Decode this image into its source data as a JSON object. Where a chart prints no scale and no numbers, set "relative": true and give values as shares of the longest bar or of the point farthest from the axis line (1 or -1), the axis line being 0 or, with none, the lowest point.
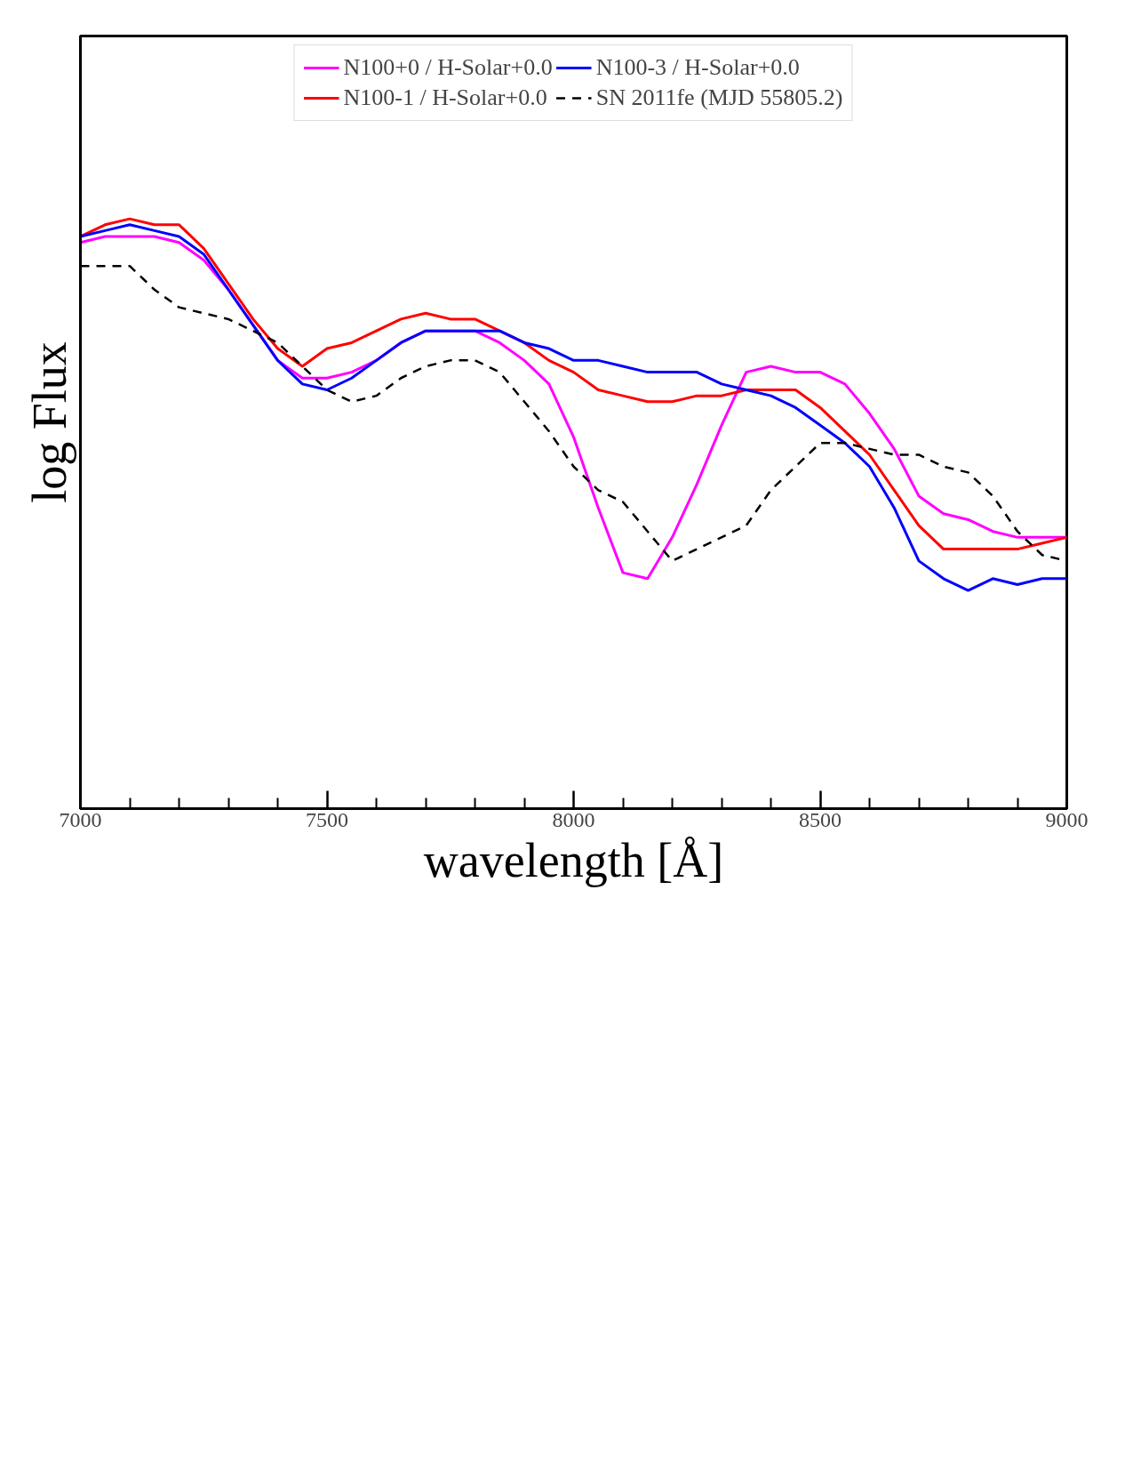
{
  "chart_data": {
    "type": "line",
    "relative": true,
    "xlabel": "wavelength [Å]",
    "ylabel": "log Flux",
    "x": [
      7000,
      7050,
      7100,
      7150,
      7200,
      7250,
      7300,
      7350,
      7400,
      7450,
      7500,
      7550,
      7600,
      7650,
      7700,
      7750,
      7800,
      7850,
      7900,
      7950,
      8000,
      8050,
      8100,
      8150,
      8200,
      8250,
      8300,
      8350,
      8400,
      8450,
      8500,
      8550,
      8600,
      8650,
      8700,
      8750,
      8800,
      8850,
      8900,
      8950,
      9000
    ],
    "xlim": [
      7000,
      9000
    ],
    "xticks": [
      7000,
      {
        "value": 7100,
        "label": null
      },
      {
        "value": 7200,
        "label": null
      },
      {
        "value": 7300,
        "label": null
      },
      {
        "value": 7400,
        "label": null
      },
      7500,
      {
        "value": 7600,
        "label": null
      },
      {
        "value": 7700,
        "label": null
      },
      {
        "value": 7800,
        "label": null
      },
      {
        "value": 7900,
        "label": null
      },
      8000,
      {
        "value": 8100,
        "label": null
      },
      {
        "value": 8200,
        "label": null
      },
      {
        "value": 8300,
        "label": null
      },
      {
        "value": 8400,
        "label": null
      },
      8500,
      {
        "value": 8600,
        "label": null
      },
      {
        "value": 8700,
        "label": null
      },
      {
        "value": 8800,
        "label": null
      },
      {
        "value": 8900,
        "label": null
      },
      9000
    ],
    "tick_labels": "x",
    "grid": false,
    "legend": "top",
    "marker": "none",
    "line_style": "solid",
    "series": [
      {
        "name": "N100+0 / H-Solar+0.0",
        "color": "#ff00ff",
        "values": [
          0.96,
          0.97,
          0.97,
          0.97,
          0.96,
          0.93,
          0.88,
          0.82,
          0.76,
          0.73,
          0.73,
          0.74,
          0.76,
          0.79,
          0.81,
          0.81,
          0.81,
          0.79,
          0.76,
          0.72,
          0.63,
          0.51,
          0.4,
          0.39,
          0.46,
          0.55,
          0.65,
          0.74,
          0.75,
          0.74,
          0.74,
          0.72,
          0.67,
          0.61,
          0.53,
          0.5,
          0.49,
          0.47,
          0.46,
          0.46,
          0.46
        ]
      },
      {
        "name": "N100-1 / H-Solar+0.0",
        "color": "#ff0000",
        "values": [
          0.97,
          0.99,
          1.0,
          0.99,
          0.99,
          0.95,
          0.89,
          0.83,
          0.78,
          0.75,
          0.78,
          0.79,
          0.81,
          0.83,
          0.84,
          0.83,
          0.83,
          0.81,
          0.79,
          0.76,
          0.74,
          0.71,
          0.7,
          0.69,
          0.69,
          0.7,
          0.7,
          0.71,
          0.71,
          0.71,
          0.68,
          0.64,
          0.6,
          0.54,
          0.48,
          0.44,
          0.44,
          0.44,
          0.44,
          0.45,
          0.46
        ]
      },
      {
        "name": "N100-3 / H-Solar+0.0",
        "color": "#0000ff",
        "values": [
          0.97,
          0.98,
          0.99,
          0.98,
          0.97,
          0.94,
          0.88,
          0.82,
          0.76,
          0.72,
          0.71,
          0.73,
          0.76,
          0.79,
          0.81,
          0.81,
          0.81,
          0.81,
          0.79,
          0.78,
          0.76,
          0.76,
          0.75,
          0.74,
          0.74,
          0.74,
          0.72,
          0.71,
          0.7,
          0.68,
          0.65,
          0.62,
          0.58,
          0.51,
          0.42,
          0.39,
          0.37,
          0.39,
          0.38,
          0.39,
          0.39
        ]
      },
      {
        "name": "SN 2011fe (MJD 55805.2)",
        "color": "#000000",
        "line_style": "dashed",
        "values": [
          0.92,
          0.92,
          0.92,
          0.88,
          0.85,
          0.84,
          0.83,
          0.81,
          0.79,
          0.75,
          0.71,
          0.69,
          0.7,
          0.73,
          0.75,
          0.76,
          0.76,
          0.74,
          0.69,
          0.64,
          0.58,
          0.54,
          0.52,
          0.47,
          0.42,
          0.44,
          0.46,
          0.48,
          0.54,
          0.58,
          0.62,
          0.62,
          0.61,
          0.6,
          0.6,
          0.58,
          0.57,
          0.53,
          0.47,
          0.43,
          0.42
        ]
      }
    ]
  }
}
